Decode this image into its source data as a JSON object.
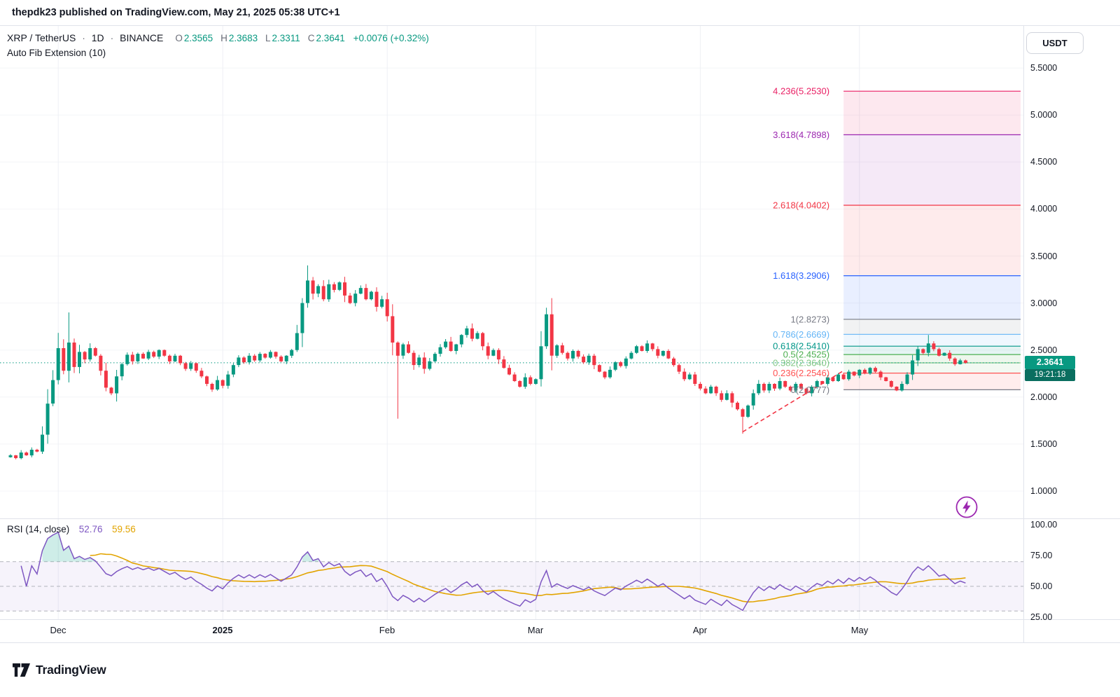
{
  "meta": {
    "publish_line": "thepdk23 published on TradingView.com, May 21, 2025 05:38 UTC+1"
  },
  "header": {
    "symbol": "XRP / TetherUS",
    "separator": "·",
    "interval": "1D",
    "exchange": "BINANCE",
    "ohlc": {
      "o_label": "O",
      "o": "2.3565",
      "h_label": "H",
      "h": "2.3683",
      "l_label": "L",
      "l": "2.3311",
      "c_label": "C",
      "c": "2.3641",
      "change": "+0.0076 (+0.32%)"
    },
    "indicator_label": "Auto Fib Extension (10)"
  },
  "price_axis": {
    "currency": "USDT",
    "ticks": [
      "5.5000",
      "5.0000",
      "4.5000",
      "4.0000",
      "3.5000",
      "3.0000",
      "2.5000",
      "2.0000",
      "1.5000",
      "1.0000"
    ],
    "last_price": "2.3641",
    "countdown": "19:21:18"
  },
  "rsi": {
    "label": "RSI (14, close)",
    "value": "52.76",
    "ma_value": "59.56",
    "ticks": [
      "100.00",
      "75.00",
      "50.00",
      "25.00"
    ]
  },
  "footer": {
    "brand": "TradingView"
  },
  "colors": {
    "up": "#089981",
    "down": "#f23645",
    "last_price_badge": "#089981",
    "countdown_badge": "#0a6e5f",
    "rsi_line": "#7e57c2",
    "rsi_ma_line": "#e2a400",
    "rsi_ma_label": "#e2a400",
    "trendline": "#f23645",
    "dotted_price_line": "#089981",
    "grid_v": "#eef0f4",
    "grid_h": "#f4f5f8",
    "bolt": "#9c27b0"
  },
  "chart_data": {
    "type": "candlestick",
    "title": "XRP/USDT 1D BINANCE with Auto Fib Extension (10) and RSI (14)",
    "ylabel": "Price (USDT)",
    "price_range": [
      1.0,
      5.5
    ],
    "rsi_range": [
      25,
      100
    ],
    "last_price": 2.3641,
    "rsi_period": 14,
    "rsi_ma_period": 14,
    "closes": [
      1.38,
      1.35,
      1.41,
      1.38,
      1.44,
      1.42,
      1.6,
      1.93,
      2.18,
      2.52,
      2.28,
      2.58,
      2.32,
      2.48,
      2.4,
      2.52,
      2.44,
      2.28,
      2.1,
      2.04,
      2.22,
      2.35,
      2.45,
      2.38,
      2.46,
      2.41,
      2.48,
      2.43,
      2.5,
      2.44,
      2.38,
      2.44,
      2.36,
      2.3,
      2.36,
      2.28,
      2.22,
      2.14,
      2.08,
      2.18,
      2.12,
      2.24,
      2.34,
      2.42,
      2.37,
      2.44,
      2.39,
      2.46,
      2.42,
      2.48,
      2.43,
      2.38,
      2.44,
      2.5,
      2.68,
      3.0,
      3.24,
      3.1,
      3.18,
      3.04,
      3.2,
      3.14,
      3.22,
      3.08,
      3.0,
      3.1,
      3.16,
      3.04,
      3.12,
      2.96,
      3.04,
      2.86,
      2.58,
      2.44,
      2.56,
      2.47,
      2.34,
      2.42,
      2.3,
      2.38,
      2.46,
      2.53,
      2.59,
      2.49,
      2.56,
      2.66,
      2.73,
      2.62,
      2.68,
      2.54,
      2.44,
      2.5,
      2.4,
      2.31,
      2.24,
      2.17,
      2.11,
      2.21,
      2.14,
      2.19,
      2.54,
      2.88,
      2.44,
      2.55,
      2.47,
      2.41,
      2.49,
      2.43,
      2.37,
      2.44,
      2.34,
      2.27,
      2.21,
      2.29,
      2.37,
      2.33,
      2.41,
      2.47,
      2.54,
      2.49,
      2.57,
      2.51,
      2.44,
      2.49,
      2.41,
      2.34,
      2.27,
      2.19,
      2.24,
      2.14,
      2.09,
      2.04,
      2.11,
      2.04,
      1.97,
      2.04,
      1.94,
      1.87,
      1.79,
      1.91,
      2.04,
      2.14,
      2.07,
      2.14,
      2.09,
      2.17,
      2.11,
      2.07,
      2.14,
      2.09,
      2.04,
      2.11,
      2.17,
      2.14,
      2.21,
      2.17,
      2.24,
      2.19,
      2.27,
      2.23,
      2.29,
      2.25,
      2.31,
      2.27,
      2.21,
      2.17,
      2.11,
      2.07,
      2.14,
      2.24,
      2.39,
      2.51,
      2.47,
      2.57,
      2.51,
      2.44,
      2.47,
      2.41,
      2.35,
      2.39,
      2.3641
    ],
    "wick_overrides": {
      "11": {
        "high": 2.9
      },
      "56": {
        "high": 3.4
      },
      "73": {
        "low": 1.77
      },
      "101": {
        "high": 2.95
      },
      "138": {
        "low": 1.61
      },
      "173": {
        "high": 2.66
      }
    },
    "month_indices": [
      9,
      40,
      71,
      99,
      130,
      160
    ],
    "time_labels": [
      {
        "text": "Dec",
        "index": 9,
        "bold": false
      },
      {
        "text": "2025",
        "index": 40,
        "bold": true
      },
      {
        "text": "Feb",
        "index": 71,
        "bold": false
      },
      {
        "text": "Mar",
        "index": 99,
        "bold": false
      },
      {
        "text": "Apr",
        "index": 130,
        "bold": false
      },
      {
        "text": "May",
        "index": 160,
        "bold": false
      }
    ],
    "fib_zone_start_index": 157,
    "fib_levels": [
      {
        "label": "4.236(5.2530)",
        "price": 5.253,
        "color": "#e91e63"
      },
      {
        "label": "3.618(4.7898)",
        "price": 4.7898,
        "color": "#9c27b0"
      },
      {
        "label": "2.618(4.0402)",
        "price": 4.0402,
        "color": "#f23645"
      },
      {
        "label": "1.618(3.2906)",
        "price": 3.2906,
        "color": "#2962ff"
      },
      {
        "label": "1(2.8273)",
        "price": 2.8273,
        "color": "#787b86"
      },
      {
        "label": "0.786(2.6669)",
        "price": 2.6669,
        "color": "#64b5f6"
      },
      {
        "label": "0.618(2.5410)",
        "price": 2.541,
        "color": "#009688"
      },
      {
        "label": "0.5(2.4525)",
        "price": 2.4525,
        "color": "#4caf50"
      },
      {
        "label": "0.382(2.3640)",
        "price": 2.364,
        "color": "#81c784"
      },
      {
        "label": "0.236(2.2546)",
        "price": 2.2546,
        "color": "#ff5252"
      },
      {
        "label": "0(2.0777)",
        "price": 2.0777,
        "color": "#787b86"
      }
    ],
    "trendline": {
      "i1": 138,
      "p1": 1.63,
      "i2": 157,
      "p2": 2.28
    },
    "rsi_band": [
      30,
      70
    ]
  }
}
